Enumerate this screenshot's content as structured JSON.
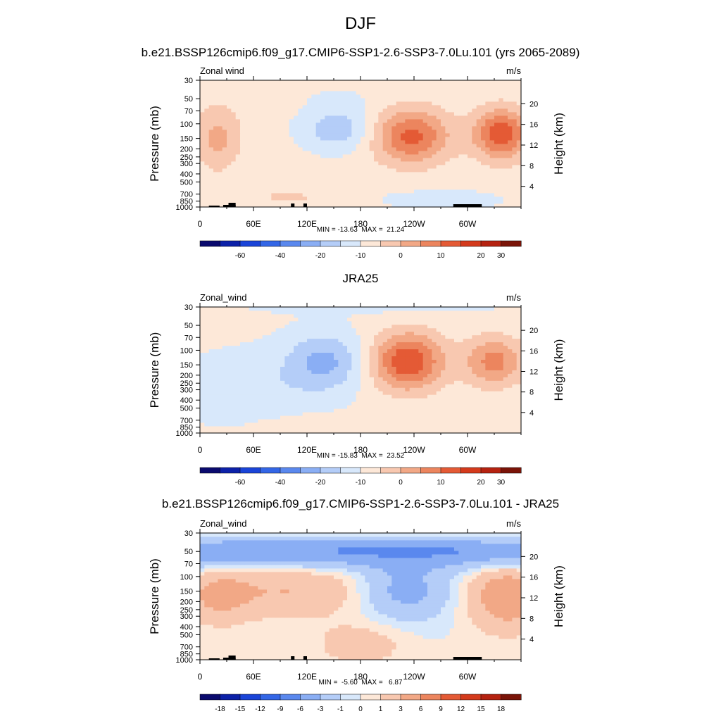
{
  "figure": {
    "title": "DJF"
  },
  "chart_data": [
    {
      "type": "heatmap",
      "title": "b.e21.BSSP126cmip6.f09_g17.CMIP6-SSP1-2.6-SSP3-7.0Lu.101 (yrs 2065-2089)",
      "left_label": "Zonal wind",
      "units": "m/s",
      "ylabel": "Pressure (mb)",
      "y2label": "Height (km)",
      "x_ticks": [
        "0",
        "60E",
        "120E",
        "180",
        "120W",
        "60W"
      ],
      "y_ticks": [
        "30",
        "50",
        "70",
        "100",
        "150",
        "200",
        "250",
        "300",
        "400",
        "500",
        "700",
        "850",
        "1000"
      ],
      "height_ticks": [
        "20",
        "16",
        "12",
        "8",
        "4"
      ],
      "stats": "MIN = -13.63  MAX =  21.24",
      "colorbar_labels": [
        "-60",
        "-40",
        "-20",
        "-10",
        "0",
        "10",
        "20",
        "30"
      ],
      "min": -13.63,
      "max": 21.24,
      "topography": true
    },
    {
      "type": "heatmap",
      "title": "JRA25",
      "left_label": "Zonal_wind",
      "units": "m/s",
      "ylabel": "Pressure (mb)",
      "y2label": "Height (km)",
      "x_ticks": [
        "0",
        "60E",
        "120E",
        "180",
        "120W",
        "60W"
      ],
      "y_ticks": [
        "30",
        "50",
        "70",
        "100",
        "150",
        "200",
        "250",
        "300",
        "400",
        "500",
        "700",
        "850",
        "1000"
      ],
      "height_ticks": [
        "20",
        "16",
        "12",
        "8",
        "4"
      ],
      "stats": "MIN = -15.83  MAX =  23.52",
      "colorbar_labels": [
        "-60",
        "-40",
        "-20",
        "-10",
        "0",
        "10",
        "20",
        "30"
      ],
      "min": -15.83,
      "max": 23.52,
      "topography": false
    },
    {
      "type": "heatmap",
      "title": "b.e21.BSSP126cmip6.f09_g17.CMIP6-SSP1-2.6-SSP3-7.0Lu.101 - JRA25",
      "left_label": "Zonal_wind",
      "units": "m/s",
      "ylabel": "Pressure (mb)",
      "y2label": "Height (km)",
      "x_ticks": [
        "0",
        "60E",
        "120E",
        "180",
        "120W",
        "60W"
      ],
      "y_ticks": [
        "30",
        "50",
        "70",
        "100",
        "150",
        "200",
        "250",
        "300",
        "400",
        "500",
        "700",
        "850",
        "1000"
      ],
      "height_ticks": [
        "20",
        "16",
        "12",
        "8",
        "4"
      ],
      "stats": "MIN =  -5.60  MAX =   6.87",
      "colorbar_labels": [
        "-18",
        "-15",
        "-12",
        "-9",
        "-6",
        "-3",
        "-1",
        "0",
        "1",
        "3",
        "6",
        "9",
        "12",
        "15",
        "18"
      ],
      "min": -5.6,
      "max": 6.87,
      "topography": true
    }
  ],
  "colors": {
    "abs_palette": [
      "#0a0a6e",
      "#0c21a8",
      "#1a44d8",
      "#3366e6",
      "#5a88ee",
      "#8aaef4",
      "#b4cdf8",
      "#d8e8fb",
      "#fde8d8",
      "#f8c8b0",
      "#f2a886",
      "#ec855e",
      "#e45a35",
      "#d43a1c",
      "#b52210",
      "#7a1408"
    ],
    "diff_palette": [
      "#0a0a6e",
      "#0c21a8",
      "#1a44d8",
      "#3366e6",
      "#5a88ee",
      "#8aaef4",
      "#b4cdf8",
      "#d8e8fb",
      "#fde8d8",
      "#f8c8b0",
      "#f2a886",
      "#ec855e",
      "#e45a35",
      "#d43a1c",
      "#b52210",
      "#7a1408"
    ]
  }
}
